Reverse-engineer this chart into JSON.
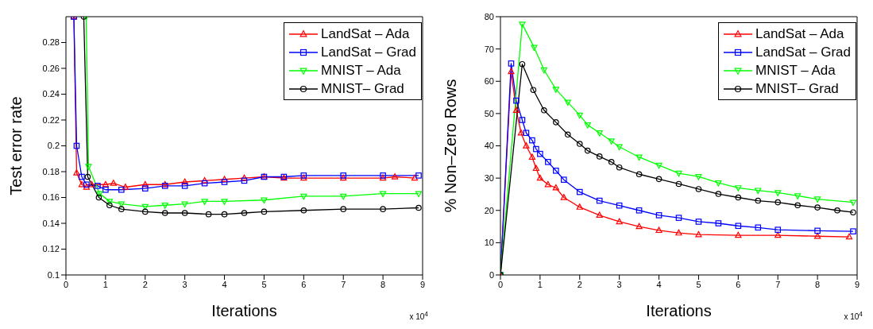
{
  "chart_data": [
    {
      "type": "line",
      "xlabel": "Iterations",
      "ylabel": "Test error rate",
      "annotations": [
        "x 10$^{4}$"
      ],
      "xlim": [
        0,
        9
      ],
      "xticks": [
        0,
        1,
        2,
        3,
        4,
        5,
        6,
        7,
        8,
        9
      ],
      "ylim": [
        0.1,
        0.3
      ],
      "yticks": [
        0.1,
        0.12,
        0.14,
        0.16,
        0.18,
        0.2,
        0.22,
        0.24,
        0.26,
        0.28
      ],
      "grid": false,
      "legend": "top right",
      "line_style": "solid",
      "series": [
        {
          "name": "LandSat – Ada",
          "color": "#ff0000",
          "marker": "triangle",
          "x": [
            0.2,
            0.27,
            0.4,
            0.52,
            0.65,
            1,
            1.2,
            1.5,
            2,
            2.5,
            3,
            3.5,
            4,
            4.5,
            5,
            5.5,
            6,
            7,
            8,
            8.3,
            8.8
          ],
          "values": [
            0.3,
            0.179,
            0.17,
            0.168,
            0.17,
            0.17,
            0.171,
            0.168,
            0.17,
            0.17,
            0.172,
            0.173,
            0.174,
            0.175,
            0.176,
            0.175,
            0.175,
            0.175,
            0.175,
            0.176,
            0.175
          ]
        },
        {
          "name": "LandSat – Grad",
          "color": "#0000ff",
          "marker": "square",
          "x": [
            0.2,
            0.27,
            0.4,
            0.52,
            0.8,
            1,
            1.4,
            2,
            2.5,
            3,
            3.5,
            4,
            4.5,
            5,
            5.5,
            6,
            7,
            8,
            8.9
          ],
          "values": [
            0.3,
            0.2,
            0.176,
            0.17,
            0.169,
            0.166,
            0.166,
            0.167,
            0.169,
            0.169,
            0.171,
            0.172,
            0.173,
            0.176,
            0.176,
            0.177,
            0.177,
            0.177,
            0.177
          ]
        },
        {
          "name": "MNIST – Ada",
          "color": "#00ff00",
          "marker": "triangle-down",
          "x": [
            0.51,
            0.57,
            0.85,
            1.1,
            1.4,
            2,
            2.5,
            3,
            3.5,
            4,
            5,
            6,
            7,
            8,
            8.9
          ],
          "values": [
            0.3,
            0.184,
            0.163,
            0.157,
            0.155,
            0.153,
            0.154,
            0.155,
            0.157,
            0.157,
            0.158,
            0.161,
            0.161,
            0.163,
            0.163
          ]
        },
        {
          "name": "MNIST– Grad",
          "color": "#000000",
          "marker": "circle",
          "x": [
            0.45,
            0.55,
            0.83,
            1.1,
            1.4,
            2,
            2.5,
            3,
            3.6,
            4,
            4.5,
            5,
            6,
            7,
            8,
            8.9
          ],
          "values": [
            0.3,
            0.176,
            0.16,
            0.154,
            0.151,
            0.149,
            0.148,
            0.148,
            0.147,
            0.147,
            0.148,
            0.149,
            0.15,
            0.151,
            0.151,
            0.152
          ]
        }
      ]
    },
    {
      "type": "line",
      "xlabel": "Iterations",
      "ylabel": "% Non–Zero Rows",
      "annotations": [
        "x 10$^{4}$"
      ],
      "xlim": [
        0,
        9
      ],
      "xticks": [
        0,
        1,
        2,
        3,
        4,
        5,
        6,
        7,
        8,
        9
      ],
      "ylim": [
        0,
        80
      ],
      "yticks": [
        0,
        10,
        20,
        30,
        40,
        50,
        60,
        70,
        80
      ],
      "grid": false,
      "legend": "top right",
      "line_style": "solid",
      "series": [
        {
          "name": "LandSat – Ada",
          "color": "#ff0000",
          "marker": "triangle",
          "x": [
            0,
            0.27,
            0.4,
            0.52,
            0.65,
            0.8,
            0.9,
            1,
            1.2,
            1.4,
            1.6,
            2,
            2.5,
            3,
            3.5,
            4,
            4.5,
            5,
            6,
            7,
            8,
            8.8
          ],
          "values": [
            0,
            63,
            51,
            44,
            40,
            36.5,
            33,
            30,
            28,
            27,
            24,
            21,
            18.5,
            16.5,
            15,
            13.8,
            13,
            12.5,
            12.3,
            12.3,
            12,
            11.8
          ]
        },
        {
          "name": "LandSat – Grad",
          "color": "#0000ff",
          "marker": "square",
          "x": [
            0,
            0.27,
            0.4,
            0.55,
            0.65,
            0.8,
            0.9,
            1,
            1.2,
            1.4,
            1.6,
            2,
            2.5,
            3,
            3.5,
            4,
            4.5,
            5,
            5.5,
            6,
            6.5,
            7,
            8,
            8.9
          ],
          "values": [
            0,
            65.5,
            54,
            48,
            44,
            41.7,
            39,
            37.5,
            35,
            32.3,
            29.5,
            25.7,
            23,
            21.5,
            20,
            18.5,
            17.7,
            16.5,
            16,
            15.2,
            14.7,
            14,
            13.7,
            13.5
          ]
        },
        {
          "name": "MNIST – Ada",
          "color": "#00ff00",
          "marker": "triangle-down",
          "x": [
            0,
            0.55,
            0.85,
            1.1,
            1.4,
            1.7,
            2,
            2.2,
            2.5,
            2.8,
            3,
            3.5,
            4,
            4.5,
            5,
            5.5,
            6,
            6.5,
            7,
            7.5,
            8,
            8.9
          ],
          "values": [
            0,
            77.7,
            70.5,
            63.5,
            57.5,
            53.5,
            49.5,
            46.5,
            44,
            41.5,
            39.7,
            36.5,
            34,
            31.5,
            30.5,
            28.5,
            27,
            26.2,
            25.5,
            24.5,
            23.5,
            22.5
          ]
        },
        {
          "name": "MNIST– Grad",
          "color": "#000000",
          "marker": "circle",
          "x": [
            0,
            0.55,
            0.83,
            1.1,
            1.4,
            1.7,
            2,
            2.2,
            2.5,
            2.8,
            3,
            3.5,
            4,
            4.5,
            5,
            5.5,
            6,
            6.5,
            7,
            7.5,
            8,
            8.5,
            8.9
          ],
          "values": [
            0,
            65.3,
            57.3,
            51,
            47.3,
            43.5,
            40.6,
            38.5,
            36.7,
            35,
            33.3,
            31.2,
            29.7,
            28.2,
            26.6,
            25.1,
            24,
            23,
            22.5,
            21.6,
            20.9,
            20,
            19.4
          ]
        }
      ]
    }
  ]
}
